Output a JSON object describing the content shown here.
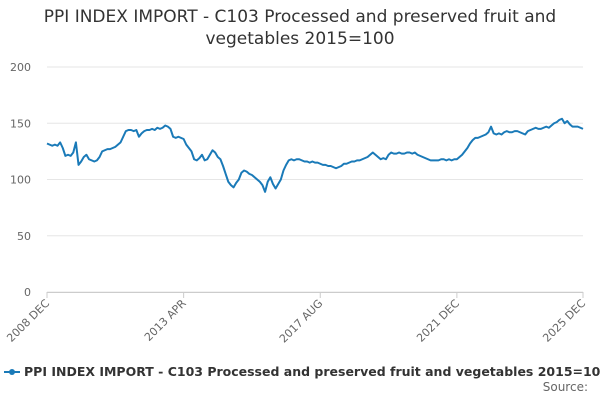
{
  "chart_data": {
    "type": "line",
    "title": "PPI INDEX IMPORT - C103 Processed and preserved fruit and vegetables 2015=100",
    "source": "Source:",
    "categories": [
      "2008 DEC",
      null,
      null,
      null,
      null,
      null,
      null,
      null,
      null,
      null,
      null,
      null,
      null,
      null,
      null,
      null,
      null,
      null,
      null,
      null,
      null,
      null,
      null,
      null,
      null,
      null,
      null,
      null,
      null,
      null,
      null,
      null,
      null,
      null,
      null,
      null,
      null,
      null,
      null,
      null,
      null,
      null,
      null,
      null,
      null,
      null,
      null,
      null,
      null,
      null,
      null,
      null,
      "2013 APR",
      null,
      null,
      null,
      null,
      null,
      null,
      null,
      null,
      null,
      null,
      null,
      null,
      null,
      null,
      null,
      null,
      null,
      null,
      null,
      null,
      null,
      null,
      null,
      null,
      null,
      null,
      null,
      null,
      null,
      null,
      null,
      null,
      null,
      null,
      null,
      null,
      null,
      null,
      null,
      null,
      null,
      null,
      null,
      null,
      null,
      null,
      null,
      null,
      null,
      null,
      null,
      "2017 AUG",
      null,
      null,
      null,
      null,
      null,
      null,
      null,
      null,
      null,
      null,
      null,
      null,
      null,
      null,
      null,
      null,
      null,
      null,
      null,
      null,
      null,
      null,
      null,
      null,
      null,
      null,
      null,
      null,
      null,
      null,
      null,
      null,
      null,
      null,
      null,
      null,
      null,
      null,
      null,
      null,
      null,
      null,
      null,
      null,
      null,
      null,
      null,
      null,
      null,
      null,
      null,
      "2021 DEC",
      null,
      null,
      null,
      null,
      null,
      null,
      null,
      null,
      null,
      null,
      null,
      null,
      null,
      null,
      null,
      null,
      null,
      null,
      null,
      null,
      null,
      null,
      null,
      null,
      null,
      null,
      null,
      null,
      null,
      null,
      null,
      null,
      null,
      null,
      null,
      null,
      null,
      null,
      null,
      null,
      null,
      null,
      null,
      null,
      null,
      null,
      null,
      "2025 DEC"
    ],
    "series": [
      {
        "name": "PPI INDEX IMPORT - C103 Processed and preserved fruit and vegetables 2015=100",
        "color": "#1a7ab8",
        "values": [
          132,
          131,
          130,
          131,
          130,
          133,
          128,
          121,
          122,
          121,
          124,
          133,
          113,
          116,
          120,
          122,
          118,
          117,
          116,
          117,
          120,
          125,
          126,
          127,
          127,
          128,
          129,
          131,
          133,
          138,
          143,
          144,
          144,
          143,
          144,
          138,
          141,
          143,
          144,
          144,
          145,
          144,
          146,
          145,
          146,
          148,
          147,
          145,
          138,
          137,
          138,
          137,
          136,
          131,
          128,
          125,
          118,
          117,
          119,
          122,
          117,
          118,
          122,
          126,
          124,
          120,
          118,
          112,
          105,
          98,
          95,
          93,
          97,
          100,
          106,
          108,
          107,
          105,
          104,
          102,
          100,
          98,
          95,
          89,
          98,
          102,
          96,
          92,
          96,
          100,
          108,
          113,
          117,
          118,
          117,
          118,
          118,
          117,
          116,
          116,
          115,
          116,
          115,
          115,
          114,
          113,
          113,
          112,
          112,
          111,
          110,
          111,
          112,
          114,
          114,
          115,
          116,
          116,
          117,
          117,
          118,
          119,
          120,
          122,
          124,
          122,
          120,
          118,
          119,
          118,
          122,
          124,
          123,
          123,
          124,
          123,
          123,
          124,
          124,
          123,
          124,
          122,
          121,
          120,
          119,
          118,
          117,
          117,
          117,
          117,
          118,
          118,
          117,
          118,
          117,
          118,
          118,
          120,
          122,
          125,
          128,
          132,
          135,
          137,
          137,
          138,
          139,
          140,
          142,
          147,
          141,
          140,
          141,
          140,
          142,
          143,
          142,
          142,
          143,
          143,
          142,
          141,
          140,
          143,
          144,
          145,
          146,
          145,
          145,
          146,
          147,
          146,
          148,
          150,
          151,
          153,
          154,
          150,
          152,
          149,
          147,
          147,
          147,
          146,
          145
        ]
      }
    ],
    "ylim": [
      0,
      200
    ],
    "yticks": [
      0,
      50,
      100,
      150,
      200
    ],
    "grid": true
  }
}
